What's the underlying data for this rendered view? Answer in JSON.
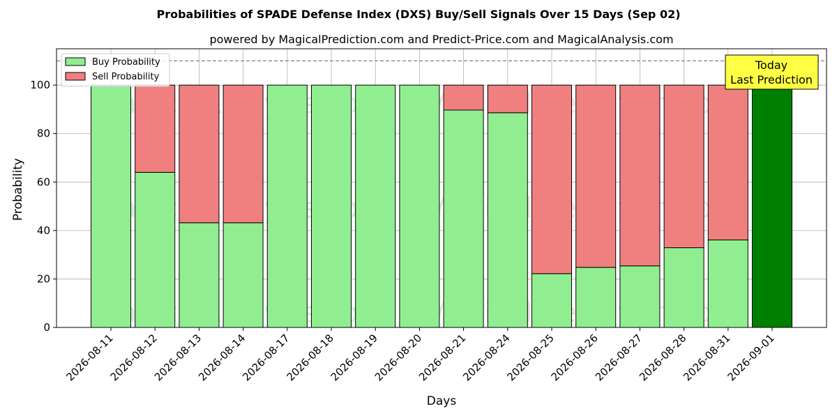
{
  "chart_data": {
    "type": "bar",
    "stacked": true,
    "title": "Probabilities of SPADE Defense Index (DXS) Buy/Sell Signals Over 15 Days (Sep 02)",
    "subtitle": "powered by MagicalPrediction.com and Predict-Price.com and MagicalAnalysis.com",
    "xlabel": "Days",
    "ylabel": "Probability",
    "ylim": [
      0,
      115
    ],
    "yticks": [
      0,
      20,
      40,
      60,
      80,
      100
    ],
    "grid": true,
    "legend_position": "top-left",
    "reference_line": {
      "value": 110,
      "style": "dashed",
      "color": "#808080"
    },
    "categories": [
      "2026-08-11",
      "2026-08-12",
      "2026-08-13",
      "2026-08-14",
      "2026-08-17",
      "2026-08-18",
      "2026-08-19",
      "2026-08-20",
      "2026-08-21",
      "2026-08-24",
      "2026-08-25",
      "2026-08-26",
      "2026-08-27",
      "2026-08-28",
      "2026-08-31",
      "2026-09-01"
    ],
    "series": [
      {
        "name": "Buy Probability",
        "color": "#90ee90",
        "values": [
          100,
          64,
          43.2,
          43.2,
          100,
          100,
          100,
          100,
          89.7,
          88.6,
          22.2,
          24.8,
          25.4,
          32.9,
          36.1,
          100
        ]
      },
      {
        "name": "Sell Probability",
        "color": "#f08080",
        "values": [
          0,
          36,
          56.8,
          56.8,
          0,
          0,
          0,
          0,
          10.3,
          11.4,
          77.8,
          75.2,
          74.6,
          67.1,
          63.9,
          0
        ]
      }
    ],
    "highlight": {
      "index": 15,
      "color": "#008000"
    },
    "annotation": {
      "text_line1": "Today",
      "text_line2": "Last Prediction",
      "background": "#ffff44"
    },
    "watermarks": [
      "MagicalAnalysis.com",
      "MagicalPrediction.com"
    ]
  }
}
